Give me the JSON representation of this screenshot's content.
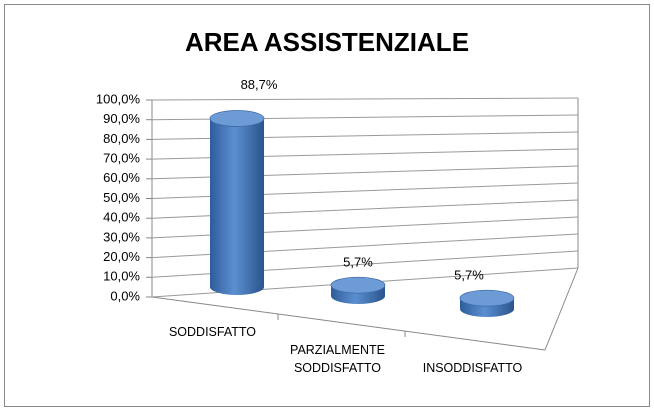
{
  "chart_data": {
    "type": "bar3d",
    "title": "AREA ASSISTENZIALE",
    "categories": [
      "SODDISFATTO",
      "PARZIALMENTE SODDISFATTO",
      "INSODDISFATTO"
    ],
    "values": [
      88.7,
      5.7,
      5.7
    ],
    "value_labels": [
      "88,7%",
      "5,7%",
      "5,7%"
    ],
    "color": "#4f81bd",
    "ylim": [
      0,
      100
    ],
    "yticks": [
      {
        "value": 0,
        "label": "0,0%"
      },
      {
        "value": 10,
        "label": "10,0%"
      },
      {
        "value": 20,
        "label": "20,0%"
      },
      {
        "value": 30,
        "label": "30,0%"
      },
      {
        "value": 40,
        "label": "40,0%"
      },
      {
        "value": 50,
        "label": "50,0%"
      },
      {
        "value": 60,
        "label": "60,0%"
      },
      {
        "value": 70,
        "label": "70,0%"
      },
      {
        "value": 80,
        "label": "80,0%"
      },
      {
        "value": 90,
        "label": "90,0%"
      },
      {
        "value": 100,
        "label": "100,0%"
      }
    ],
    "grid": true
  }
}
